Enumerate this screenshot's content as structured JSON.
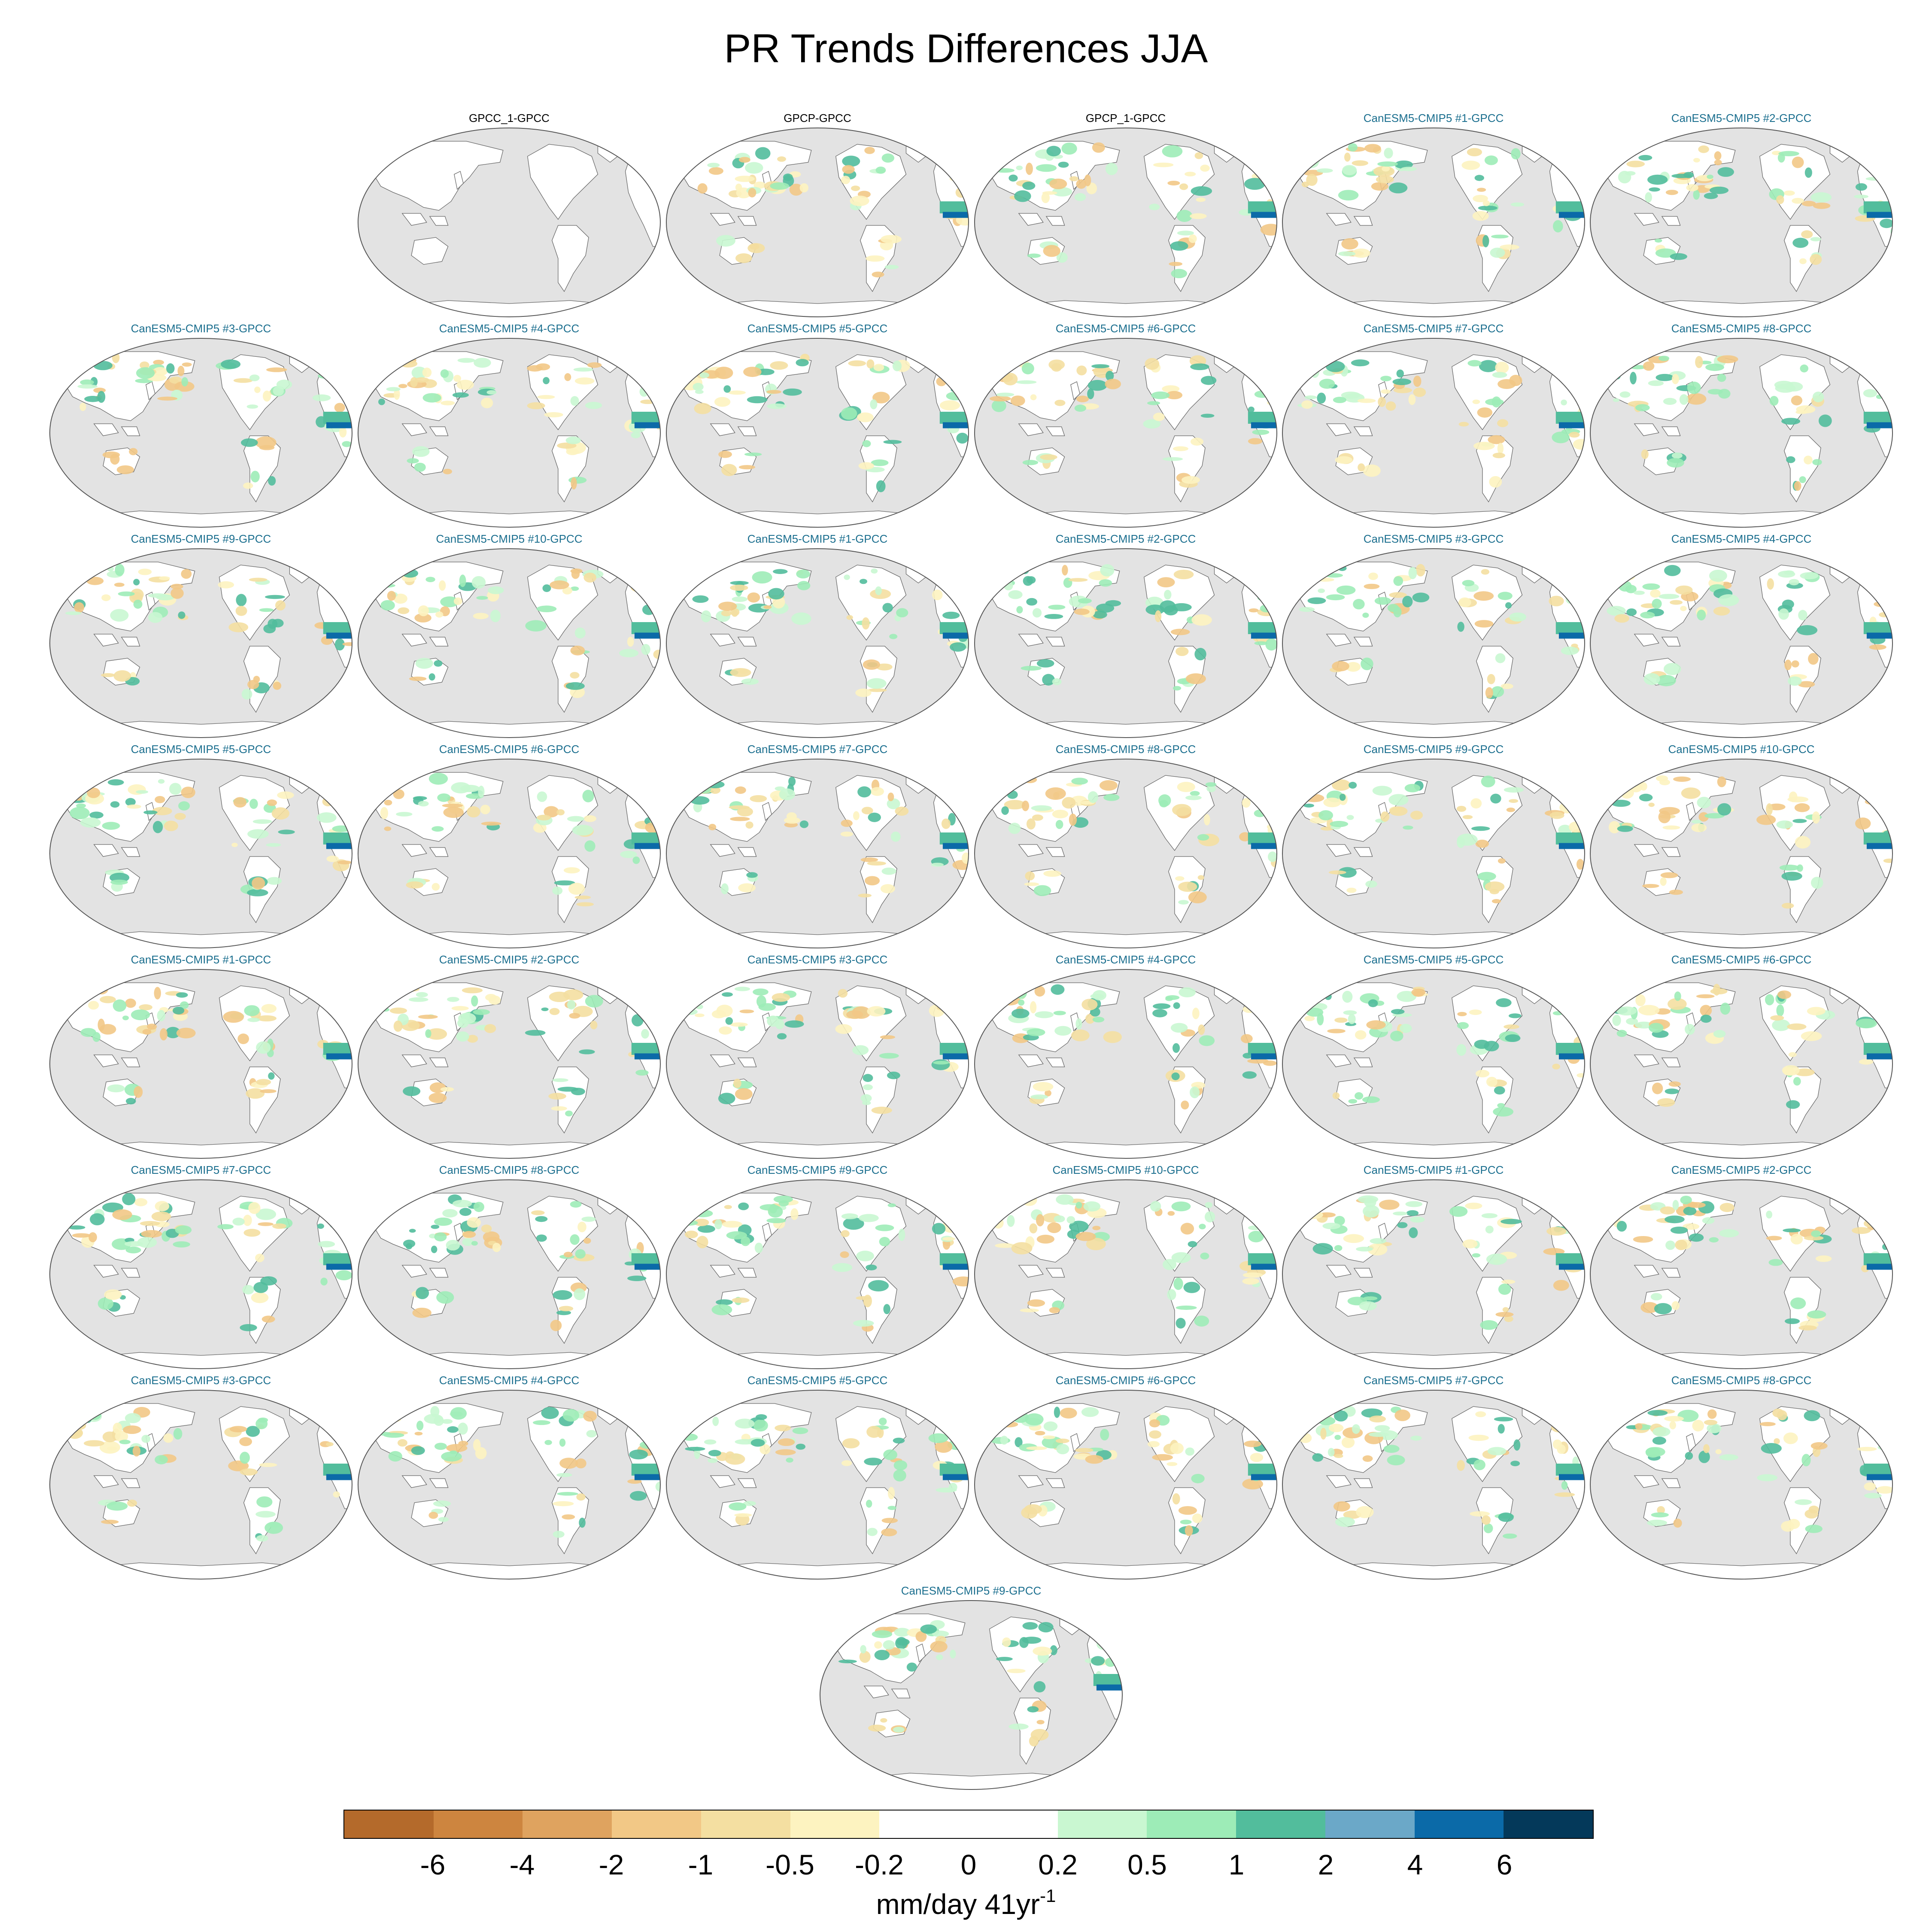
{
  "title": "PR Trends Differences JJA",
  "colors": {
    "ocean": "#e3e3e3",
    "land_neutral": "#ffffff",
    "coast": "#666666",
    "title_obs": "#000000",
    "title_model": "#1a6e8e"
  },
  "panels": [
    {
      "label": "GPCC_1-GPCC",
      "kind": "obs",
      "pattern": "none"
    },
    {
      "label": "GPCP-GPCC",
      "kind": "obs",
      "pattern": "trend"
    },
    {
      "label": "GPCP_1-GPCC",
      "kind": "obs",
      "pattern": "trend"
    },
    {
      "label": "CanESM5-CMIP5 #1-GPCC",
      "kind": "model",
      "pattern": "trend"
    },
    {
      "label": "CanESM5-CMIP5 #2-GPCC",
      "kind": "model",
      "pattern": "trend"
    },
    {
      "label": "CanESM5-CMIP5 #3-GPCC",
      "kind": "model",
      "pattern": "trend"
    },
    {
      "label": "CanESM5-CMIP5 #4-GPCC",
      "kind": "model",
      "pattern": "trend"
    },
    {
      "label": "CanESM5-CMIP5 #5-GPCC",
      "kind": "model",
      "pattern": "trend"
    },
    {
      "label": "CanESM5-CMIP5 #6-GPCC",
      "kind": "model",
      "pattern": "trend"
    },
    {
      "label": "CanESM5-CMIP5 #7-GPCC",
      "kind": "model",
      "pattern": "trend"
    },
    {
      "label": "CanESM5-CMIP5 #8-GPCC",
      "kind": "model",
      "pattern": "trend"
    },
    {
      "label": "CanESM5-CMIP5 #9-GPCC",
      "kind": "model",
      "pattern": "trend"
    },
    {
      "label": "CanESM5-CMIP5 #10-GPCC",
      "kind": "model",
      "pattern": "trend"
    },
    {
      "label": "CanESM5-CMIP5 #1-GPCC",
      "kind": "model",
      "pattern": "trend"
    },
    {
      "label": "CanESM5-CMIP5 #2-GPCC",
      "kind": "model",
      "pattern": "trend"
    },
    {
      "label": "CanESM5-CMIP5 #3-GPCC",
      "kind": "model",
      "pattern": "trend"
    },
    {
      "label": "CanESM5-CMIP5 #4-GPCC",
      "kind": "model",
      "pattern": "trend"
    },
    {
      "label": "CanESM5-CMIP5 #5-GPCC",
      "kind": "model",
      "pattern": "trend"
    },
    {
      "label": "CanESM5-CMIP5 #6-GPCC",
      "kind": "model",
      "pattern": "trend"
    },
    {
      "label": "CanESM5-CMIP5 #7-GPCC",
      "kind": "model",
      "pattern": "trend"
    },
    {
      "label": "CanESM5-CMIP5 #8-GPCC",
      "kind": "model",
      "pattern": "trend"
    },
    {
      "label": "CanESM5-CMIP5 #9-GPCC",
      "kind": "model",
      "pattern": "trend"
    },
    {
      "label": "CanESM5-CMIP5 #10-GPCC",
      "kind": "model",
      "pattern": "trend"
    },
    {
      "label": "CanESM5-CMIP5 #1-GPCC",
      "kind": "model",
      "pattern": "trend"
    },
    {
      "label": "CanESM5-CMIP5 #2-GPCC",
      "kind": "model",
      "pattern": "trend"
    },
    {
      "label": "CanESM5-CMIP5 #3-GPCC",
      "kind": "model",
      "pattern": "trend"
    },
    {
      "label": "CanESM5-CMIP5 #4-GPCC",
      "kind": "model",
      "pattern": "trend"
    },
    {
      "label": "CanESM5-CMIP5 #5-GPCC",
      "kind": "model",
      "pattern": "trend"
    },
    {
      "label": "CanESM5-CMIP5 #6-GPCC",
      "kind": "model",
      "pattern": "trend"
    },
    {
      "label": "CanESM5-CMIP5 #7-GPCC",
      "kind": "model",
      "pattern": "trend"
    },
    {
      "label": "CanESM5-CMIP5 #8-GPCC",
      "kind": "model",
      "pattern": "trend"
    },
    {
      "label": "CanESM5-CMIP5 #9-GPCC",
      "kind": "model",
      "pattern": "trend"
    },
    {
      "label": "CanESM5-CMIP5 #10-GPCC",
      "kind": "model",
      "pattern": "trend"
    },
    {
      "label": "CanESM5-CMIP5 #1-GPCC",
      "kind": "model",
      "pattern": "trend"
    },
    {
      "label": "CanESM5-CMIP5 #2-GPCC",
      "kind": "model",
      "pattern": "trend"
    },
    {
      "label": "CanESM5-CMIP5 #3-GPCC",
      "kind": "model",
      "pattern": "trend"
    },
    {
      "label": "CanESM5-CMIP5 #4-GPCC",
      "kind": "model",
      "pattern": "trend"
    },
    {
      "label": "CanESM5-CMIP5 #5-GPCC",
      "kind": "model",
      "pattern": "trend"
    },
    {
      "label": "CanESM5-CMIP5 #6-GPCC",
      "kind": "model",
      "pattern": "trend"
    },
    {
      "label": "CanESM5-CMIP5 #7-GPCC",
      "kind": "model",
      "pattern": "trend"
    },
    {
      "label": "CanESM5-CMIP5 #8-GPCC",
      "kind": "model",
      "pattern": "trend"
    },
    {
      "label": "CanESM5-CMIP5 #9-GPCC",
      "kind": "model",
      "pattern": "trend"
    }
  ],
  "colorbar": {
    "colors": [
      "#b46a2b",
      "#cd853f",
      "#dfa35f",
      "#f2c886",
      "#f4dfa1",
      "#fdf3c0",
      "#ffffff",
      "#ffffff",
      "#c9f7d1",
      "#9decb7",
      "#52bd9c",
      "#6ba8c8",
      "#0b6aa8",
      "#04395a"
    ],
    "labels": [
      "-6",
      "-4",
      "-2",
      "-1",
      "-0.5",
      "-0.2",
      "0",
      "0.2",
      "0.5",
      "1",
      "2",
      "4",
      "6"
    ],
    "units": "mm/day 41yr",
    "units_exponent": "-1"
  }
}
